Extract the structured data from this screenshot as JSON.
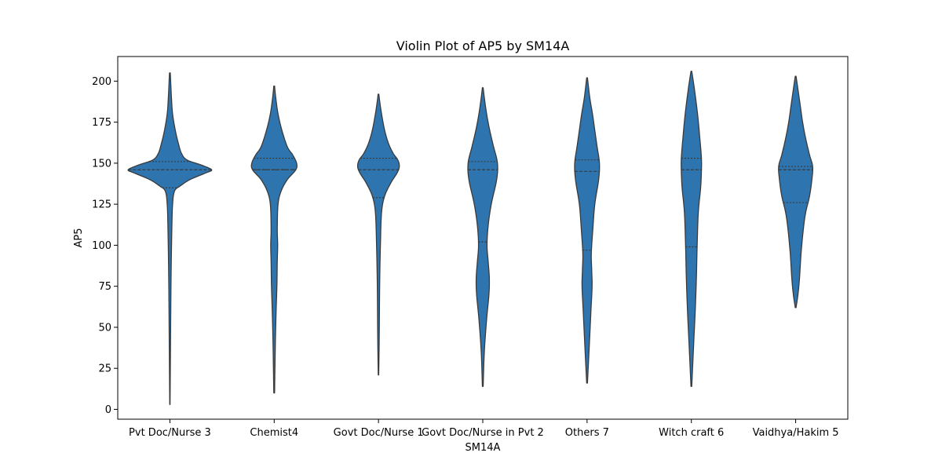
{
  "chart_data": {
    "type": "violin",
    "title": "Violin Plot of AP5 by SM14A",
    "xlabel": "SM14A",
    "ylabel": "AP5",
    "ylim": [
      -6,
      215
    ],
    "yticks": [
      0,
      25,
      50,
      75,
      100,
      125,
      150,
      175,
      200
    ],
    "grid": false,
    "legend": "none",
    "color": "#2e75b0",
    "edge_color": "#3a3a3a",
    "categories": [
      "Pvt Doc/Nurse 3",
      "Chemist4",
      "Govt Doc/Nurse 1",
      "Govt Doc/Nurse in Pvt 2",
      "Others 7",
      "Witch craft 6",
      "Vaidhya/Hakim 5"
    ],
    "violins": [
      {
        "category": "Pvt Doc/Nurse 3",
        "min": 3,
        "max": 205,
        "q1": 135,
        "median": 146,
        "q3": 151,
        "profile": [
          [
            3,
            0.2
          ],
          [
            40,
            0.8
          ],
          [
            80,
            1.5
          ],
          [
            110,
            2.5
          ],
          [
            125,
            3.5
          ],
          [
            133,
            6
          ],
          [
            136,
            13
          ],
          [
            140,
            26
          ],
          [
            144,
            46
          ],
          [
            146,
            54
          ],
          [
            149,
            40
          ],
          [
            152,
            22
          ],
          [
            156,
            15
          ],
          [
            162,
            11
          ],
          [
            170,
            7
          ],
          [
            180,
            3.5
          ],
          [
            190,
            2
          ],
          [
            200,
            1
          ],
          [
            205,
            0.5
          ]
        ]
      },
      {
        "category": "Chemist4",
        "min": 10,
        "max": 197,
        "q1": 146,
        "median": 146,
        "q3": 153,
        "profile": [
          [
            10,
            0.5
          ],
          [
            40,
            1.5
          ],
          [
            60,
            2.5
          ],
          [
            75,
            3.5
          ],
          [
            90,
            4
          ],
          [
            100,
            4.5
          ],
          [
            110,
            4
          ],
          [
            125,
            5
          ],
          [
            133,
            9
          ],
          [
            140,
            17
          ],
          [
            146,
            28
          ],
          [
            150,
            29
          ],
          [
            155,
            24
          ],
          [
            160,
            17
          ],
          [
            170,
            10
          ],
          [
            180,
            5
          ],
          [
            190,
            2
          ],
          [
            197,
            0.5
          ]
        ]
      },
      {
        "category": "Govt Doc/Nurse 1",
        "min": 21,
        "max": 192,
        "q1": 129,
        "median": 146,
        "q3": 153,
        "profile": [
          [
            21,
            0.3
          ],
          [
            45,
            1
          ],
          [
            75,
            1.5
          ],
          [
            100,
            2.5
          ],
          [
            120,
            4
          ],
          [
            130,
            8
          ],
          [
            138,
            16
          ],
          [
            144,
            24
          ],
          [
            148,
            27
          ],
          [
            152,
            25
          ],
          [
            156,
            19
          ],
          [
            162,
            13
          ],
          [
            170,
            8
          ],
          [
            180,
            4
          ],
          [
            188,
            1.5
          ],
          [
            192,
            0.5
          ]
        ]
      },
      {
        "category": "Govt Doc/Nurse in Pvt 2",
        "min": 14,
        "max": 196,
        "q1": 102,
        "median": 146,
        "q3": 151,
        "profile": [
          [
            14,
            0.5
          ],
          [
            35,
            2
          ],
          [
            55,
            5
          ],
          [
            70,
            8
          ],
          [
            80,
            8.5
          ],
          [
            90,
            7
          ],
          [
            100,
            5.5
          ],
          [
            112,
            7
          ],
          [
            125,
            11
          ],
          [
            140,
            18
          ],
          [
            150,
            19
          ],
          [
            160,
            14
          ],
          [
            170,
            9
          ],
          [
            180,
            5
          ],
          [
            190,
            2
          ],
          [
            196,
            0.5
          ]
        ]
      },
      {
        "category": "Others 7",
        "min": 16,
        "max": 202,
        "q1": 97,
        "median": 145,
        "q3": 152,
        "profile": [
          [
            16,
            0.5
          ],
          [
            40,
            3
          ],
          [
            60,
            5
          ],
          [
            75,
            6.5
          ],
          [
            85,
            6
          ],
          [
            95,
            5.5
          ],
          [
            110,
            7.5
          ],
          [
            125,
            10
          ],
          [
            140,
            15
          ],
          [
            150,
            16
          ],
          [
            160,
            13
          ],
          [
            170,
            10
          ],
          [
            180,
            7
          ],
          [
            190,
            3.5
          ],
          [
            202,
            0.5
          ]
        ]
      },
      {
        "category": "Witch craft 6",
        "min": 14,
        "max": 206,
        "q1": 99,
        "median": 146,
        "q3": 153,
        "profile": [
          [
            14,
            0.5
          ],
          [
            40,
            3
          ],
          [
            60,
            5
          ],
          [
            80,
            6.5
          ],
          [
            100,
            7.5
          ],
          [
            120,
            9
          ],
          [
            135,
            12
          ],
          [
            145,
            13
          ],
          [
            153,
            13
          ],
          [
            165,
            11
          ],
          [
            180,
            8
          ],
          [
            195,
            4
          ],
          [
            206,
            0.5
          ]
        ]
      },
      {
        "category": "Vaidhya/Hakim 5",
        "min": 62,
        "max": 203,
        "q1": 126,
        "median": 146,
        "q3": 148,
        "profile": [
          [
            62,
            0.5
          ],
          [
            70,
            3
          ],
          [
            80,
            5
          ],
          [
            95,
            7
          ],
          [
            110,
            10
          ],
          [
            120,
            13
          ],
          [
            130,
            18
          ],
          [
            140,
            21
          ],
          [
            148,
            22
          ],
          [
            155,
            18
          ],
          [
            165,
            13
          ],
          [
            175,
            9
          ],
          [
            185,
            6
          ],
          [
            195,
            3
          ],
          [
            203,
            0.5
          ]
        ]
      }
    ]
  }
}
